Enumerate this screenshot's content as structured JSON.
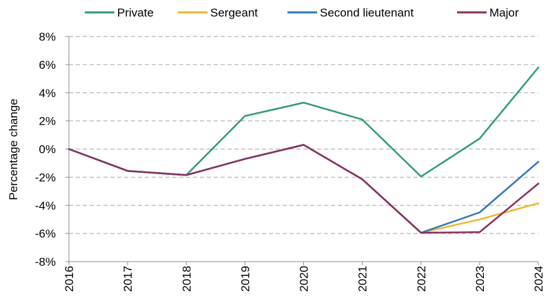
{
  "chart_data": {
    "type": "line",
    "title": "",
    "xlabel": "",
    "ylabel": "Percentage change",
    "x": [
      "2016",
      "2017",
      "2018",
      "2019",
      "2020",
      "2021",
      "2022",
      "2023",
      "2024"
    ],
    "ylim": [
      -8,
      8
    ],
    "yticks": [
      8,
      6,
      4,
      2,
      0,
      -2,
      -4,
      -6,
      -8
    ],
    "ytick_labels": [
      "8%",
      "6%",
      "4%",
      "2%",
      "0%",
      "-2%",
      "-4%",
      "-6%",
      "-8%"
    ],
    "grid": "horizontal dashed",
    "legend_position": "top",
    "series": [
      {
        "name": "Private",
        "color": "#2e9e76",
        "values": [
          0,
          -1.55,
          -1.85,
          2.35,
          3.3,
          2.1,
          -1.95,
          0.75,
          5.8
        ]
      },
      {
        "name": "Sergeant",
        "color": "#f0b92a",
        "values": [
          0,
          -1.55,
          -1.85,
          -0.7,
          0.3,
          -2.15,
          -5.95,
          -5.0,
          -3.85
        ]
      },
      {
        "name": "Second lieutenant",
        "color": "#2f78c0",
        "values": [
          0,
          -1.55,
          -1.85,
          -0.7,
          0.3,
          -2.15,
          -5.95,
          -4.5,
          -0.9
        ]
      },
      {
        "name": "Major",
        "color": "#8b2f64",
        "values": [
          0,
          -1.55,
          -1.85,
          -0.7,
          0.3,
          -2.15,
          -5.95,
          -5.9,
          -2.45
        ]
      }
    ]
  }
}
